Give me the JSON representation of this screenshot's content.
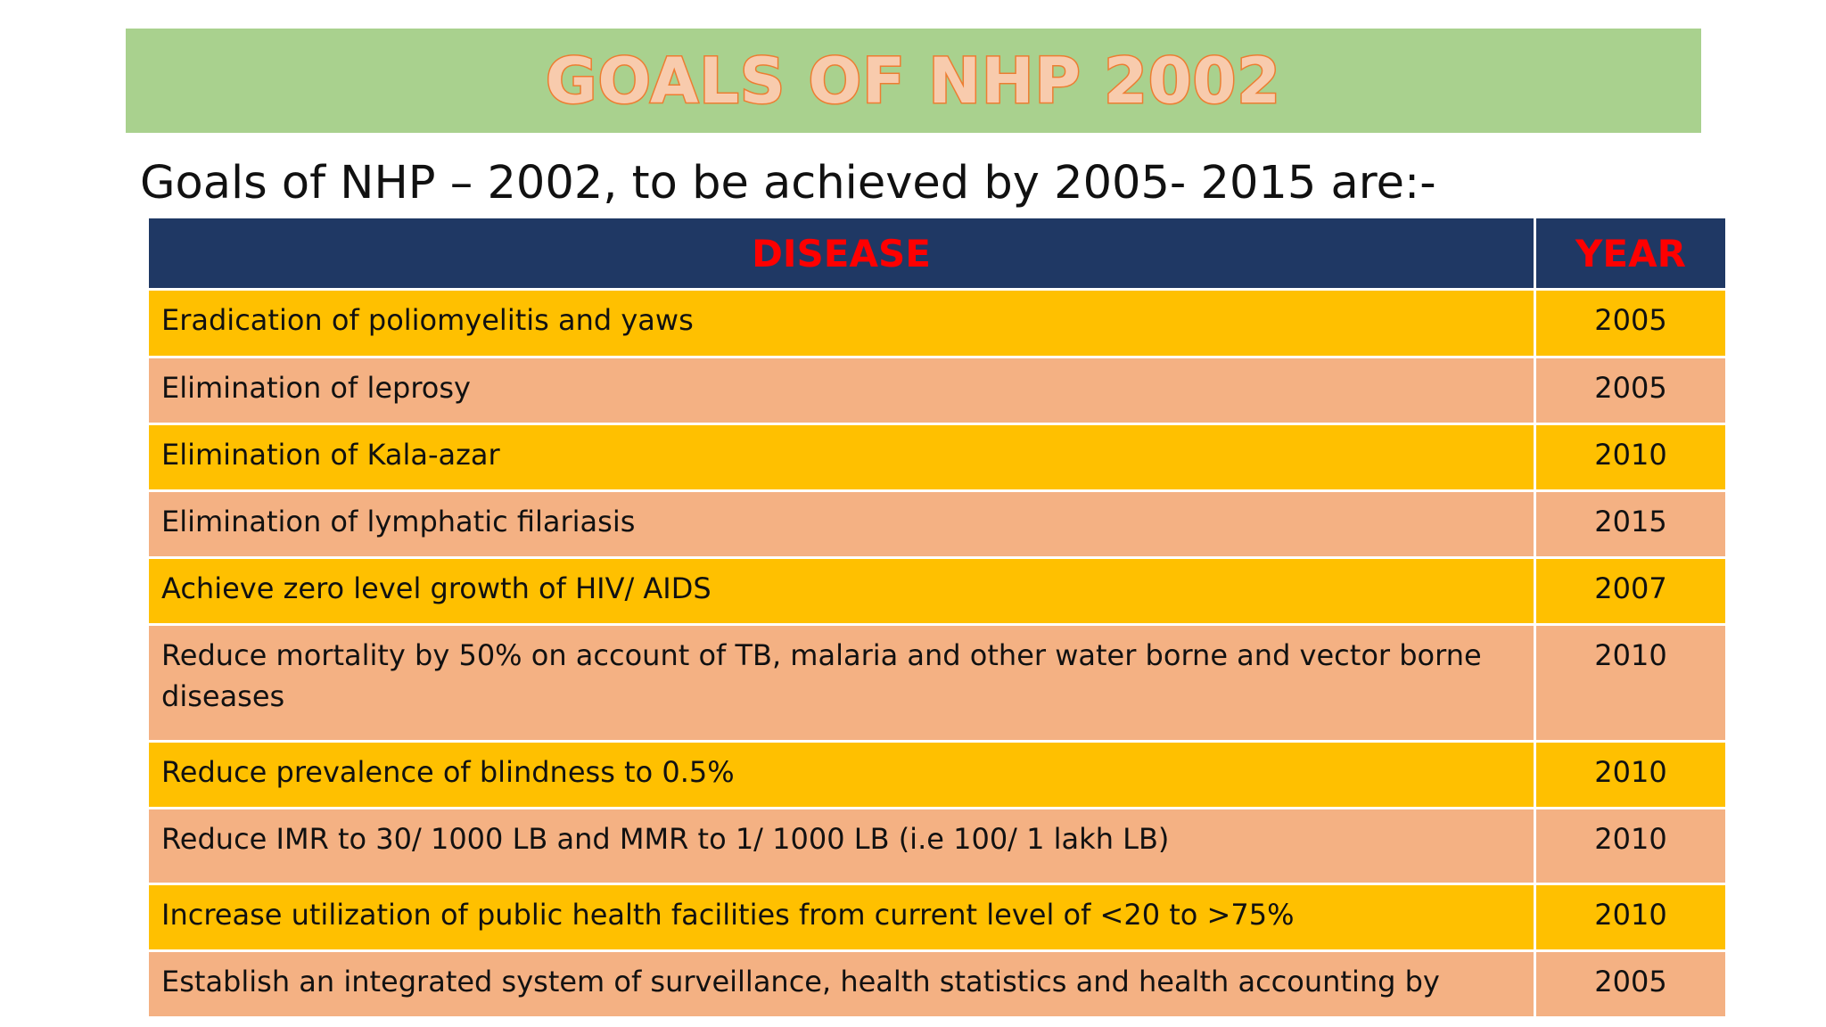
{
  "slide": {
    "title": "GOALS OF NHP 2002",
    "subtitle": "Goals of NHP – 2002, to be achieved by 2005- 2015 are:-"
  },
  "table": {
    "headers": [
      "DISEASE",
      "YEAR"
    ],
    "rows": [
      {
        "disease": "Eradication of poliomyelitis and yaws",
        "year": "2005"
      },
      {
        "disease": "Elimination of leprosy",
        "year": "2005"
      },
      {
        "disease": "Elimination of Kala-azar",
        "year": "2010"
      },
      {
        "disease": "Elimination of lymphatic filariasis",
        "year": "2015"
      },
      {
        "disease": "Achieve zero level growth of HIV/ AIDS",
        "year": "2007"
      },
      {
        "disease": "Reduce mortality by 50% on account of TB, malaria and other water borne and vector borne diseases",
        "year": "2010"
      },
      {
        "disease": "Reduce prevalence of blindness to 0.5%",
        "year": "2010"
      },
      {
        "disease": "Reduce IMR to 30/ 1000 LB and MMR to 1/ 1000 LB (i.e 100/ 1 lakh LB)",
        "year": "2010"
      },
      {
        "disease": "Increase utilization of public health facilities from current level of <20 to >75%",
        "year": "2010"
      },
      {
        "disease": "Establish an integrated system of surveillance, health statistics and health accounting by",
        "year": "2005"
      }
    ]
  },
  "colors": {
    "title_bar": "#a9d18e",
    "title_text_fill": "#f8cbad",
    "title_text_outline": "#ed7d31",
    "header_bg": "#1f3864",
    "header_text": "#ff0000",
    "row_yellow": "#ffc000",
    "row_peach": "#f4b183"
  }
}
